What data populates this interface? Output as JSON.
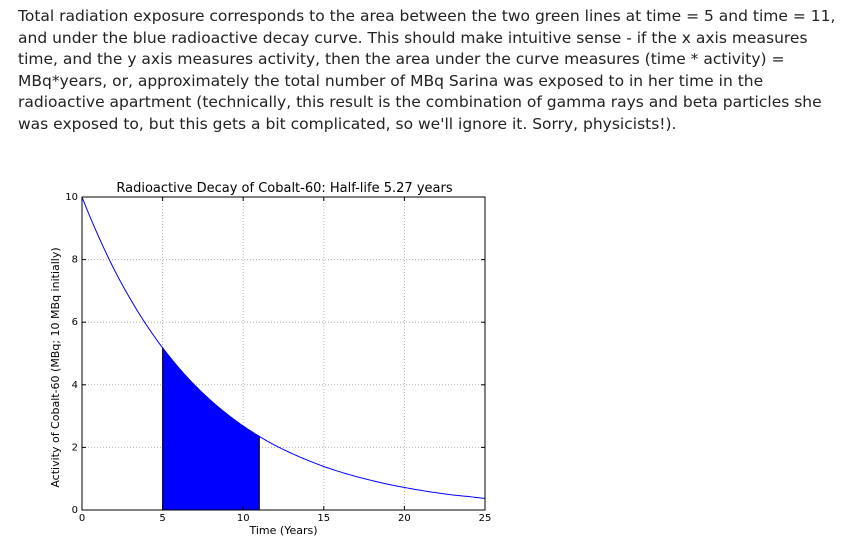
{
  "paragraph": "Total radiation exposure corresponds to the area between the two green lines at time = 5 and time = 11, and under the blue radioactive decay curve. This should make intuitive sense - if the x axis measures time, and the y axis measures activity, then the area under the curve measures (time * activity) = MBq*years, or, approximately the total number of MBq Sarina was exposed to in her time in the radioactive apartment (technically, this result is the combination of gamma rays and beta particles she was exposed to, but this gets a bit complicated, so we'll ignore it. Sorry, physicists!).",
  "chart_data": {
    "type": "area",
    "title": "Radioactive Decay of Cobalt-60: Half-life 5.27 years",
    "xlabel": "Time (Years)",
    "ylabel": "Activity of Cobalt-60 (MBq; 10 MBq initially)",
    "xlim": [
      0,
      25
    ],
    "ylim": [
      0,
      10
    ],
    "xticks": [
      0,
      5,
      10,
      15,
      20,
      25
    ],
    "yticks": [
      0,
      2,
      4,
      6,
      8,
      10
    ],
    "grid": true,
    "series": [
      {
        "x": [
          0,
          1,
          2,
          3,
          4,
          5,
          6,
          7,
          8,
          9,
          10,
          11,
          12,
          13,
          14,
          15,
          16,
          17,
          18,
          19,
          20,
          21,
          22,
          23,
          24,
          25
        ],
        "y": [
          10.0,
          8.77,
          7.68,
          6.74,
          5.91,
          5.18,
          4.54,
          3.98,
          3.49,
          3.06,
          2.68,
          2.35,
          2.06,
          1.81,
          1.59,
          1.39,
          1.22,
          1.07,
          0.94,
          0.82,
          0.72,
          0.63,
          0.55,
          0.48,
          0.43,
          0.37
        ]
      }
    ],
    "shaded_region": {
      "x_start": 5,
      "x_end": 11
    },
    "colors": {
      "curve": "#0000ff",
      "fill": "#0000ff"
    }
  }
}
